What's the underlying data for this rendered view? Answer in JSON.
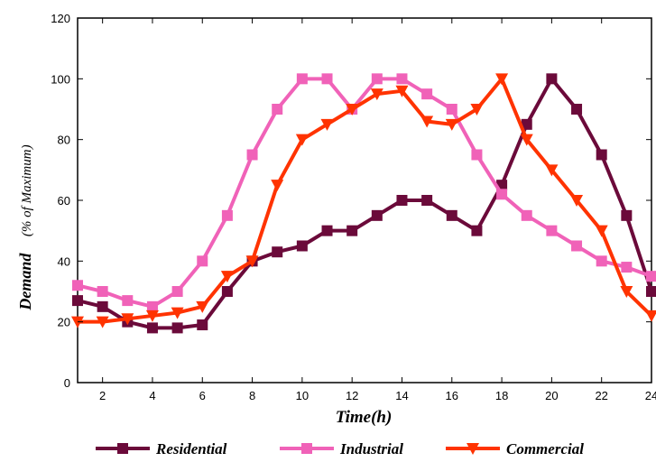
{
  "chart_data": {
    "type": "line",
    "xlabel": "Time(h)",
    "ylabel_main": "Demand",
    "ylabel_sub": "(% of Maximum)",
    "xlim": [
      1,
      24
    ],
    "ylim": [
      0,
      120
    ],
    "x_ticks": [
      2,
      4,
      6,
      8,
      10,
      12,
      14,
      16,
      18,
      20,
      22,
      24
    ],
    "y_ticks": [
      0,
      20,
      40,
      60,
      80,
      100,
      120
    ],
    "grid": false,
    "legend_position": "bottom",
    "x": [
      1,
      2,
      3,
      4,
      5,
      6,
      7,
      8,
      9,
      10,
      11,
      12,
      13,
      14,
      15,
      16,
      17,
      18,
      19,
      20,
      21,
      22,
      23,
      24
    ],
    "series": [
      {
        "name": "Residential",
        "color": "#6b0a3a",
        "marker": "square",
        "values": [
          27,
          25,
          20,
          18,
          18,
          19,
          30,
          40,
          43,
          45,
          50,
          50,
          55,
          60,
          60,
          55,
          50,
          65,
          85,
          100,
          90,
          75,
          55,
          30
        ]
      },
      {
        "name": "Industrial",
        "color": "#f062b8",
        "marker": "square",
        "values": [
          32,
          30,
          27,
          25,
          30,
          40,
          55,
          75,
          90,
          100,
          100,
          90,
          100,
          100,
          95,
          90,
          75,
          62,
          55,
          50,
          45,
          40,
          38,
          35
        ]
      },
      {
        "name": "Commercial",
        "color": "#ff3300",
        "marker": "triangle-down",
        "values": [
          20,
          20,
          21,
          22,
          23,
          25,
          35,
          40,
          65,
          80,
          85,
          90,
          95,
          96,
          86,
          85,
          90,
          100,
          80,
          70,
          60,
          50,
          30,
          22
        ]
      }
    ]
  }
}
